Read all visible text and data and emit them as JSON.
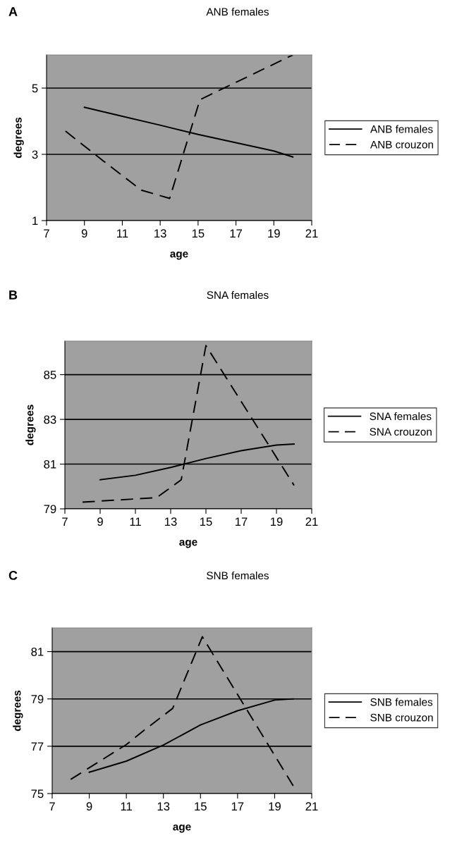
{
  "chart_data": [
    {
      "type": "line",
      "title": "ANB females",
      "xlabel": "age",
      "ylabel": "degrees",
      "annotations": [
        "A"
      ],
      "xlim": [
        7,
        21
      ],
      "xticks": [
        7,
        9,
        11,
        13,
        15,
        17,
        19,
        21
      ],
      "ylim": [
        1,
        6
      ],
      "yticks": [
        1,
        3,
        5
      ],
      "grid": "y",
      "legend": "right",
      "marker": "none",
      "series": [
        {
          "name": "ANB females",
          "color": "#000000",
          "line_style": "solid",
          "x": [
            9,
            11,
            13,
            15,
            17,
            19,
            20
          ],
          "values": [
            4.42,
            4.15,
            3.88,
            3.6,
            3.35,
            3.1,
            2.92
          ]
        },
        {
          "name": "ANB crouzon",
          "color": "#000000",
          "line_style": "dashed",
          "x": [
            8,
            10,
            12,
            13.5,
            15.1,
            20
          ],
          "values": [
            3.7,
            2.8,
            1.92,
            1.67,
            4.65,
            6.0
          ]
        }
      ]
    },
    {
      "type": "line",
      "title": "SNA females",
      "xlabel": "age",
      "ylabel": "degrees",
      "annotations": [
        "B"
      ],
      "xlim": [
        7,
        21
      ],
      "xticks": [
        7,
        9,
        11,
        13,
        15,
        17,
        19,
        21
      ],
      "ylim": [
        79,
        86.5
      ],
      "yticks": [
        79,
        81,
        83,
        85
      ],
      "grid": "y",
      "legend": "right",
      "marker": "none",
      "series": [
        {
          "name": "SNA females",
          "color": "#000000",
          "line_style": "solid",
          "x": [
            9,
            11,
            13,
            15,
            17,
            19,
            20
          ],
          "values": [
            80.3,
            80.5,
            80.85,
            81.25,
            81.6,
            81.85,
            81.9
          ]
        },
        {
          "name": "SNA crouzon",
          "color": "#000000",
          "line_style": "dashed",
          "x": [
            8,
            12.2,
            13,
            13.6,
            15,
            20
          ],
          "values": [
            79.3,
            79.5,
            79.95,
            80.3,
            86.3,
            80.05
          ]
        }
      ]
    },
    {
      "type": "line",
      "title": "SNB females",
      "xlabel": "age",
      "ylabel": "degrees",
      "annotations": [
        "C"
      ],
      "xlim": [
        7,
        21
      ],
      "xticks": [
        7,
        9,
        11,
        13,
        15,
        17,
        19,
        21
      ],
      "ylim": [
        75,
        82
      ],
      "yticks": [
        75,
        77,
        79,
        81
      ],
      "grid": "y",
      "legend": "right",
      "marker": "none",
      "series": [
        {
          "name": "SNB females",
          "color": "#000000",
          "line_style": "solid",
          "x": [
            9,
            11,
            13,
            15,
            17,
            19,
            20
          ],
          "values": [
            75.9,
            76.37,
            77.05,
            77.9,
            78.5,
            78.95,
            79.0
          ]
        },
        {
          "name": "SNB crouzon",
          "color": "#000000",
          "line_style": "dashed",
          "x": [
            8,
            11,
            12,
            13.5,
            15.1,
            20
          ],
          "values": [
            75.6,
            77.07,
            77.7,
            78.6,
            81.63,
            75.33
          ]
        }
      ]
    }
  ]
}
